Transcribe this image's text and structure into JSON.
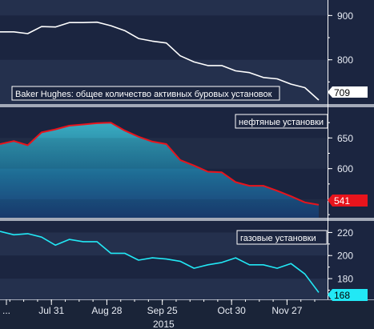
{
  "chart_data": [
    {
      "type": "line",
      "legend": "Baker Hughes: общее количество активных буровых установок",
      "x": [
        "Jul 03",
        "Jul 10",
        "Jul 17",
        "Jul 24",
        "Jul 31",
        "Aug 07",
        "Aug 14",
        "Aug 21",
        "Aug 28",
        "Sep 04",
        "Sep 11",
        "Sep 18",
        "Sep 25",
        "Oct 02",
        "Oct 09",
        "Oct 16",
        "Oct 23",
        "Oct 30",
        "Nov 06",
        "Nov 13",
        "Nov 20",
        "Nov 27",
        "Dec 04",
        "Dec 11"
      ],
      "values": [
        863,
        863,
        859,
        875,
        874,
        884,
        884,
        885,
        877,
        866,
        848,
        842,
        838,
        809,
        795,
        787,
        787,
        775,
        771,
        760,
        757,
        745,
        737,
        709
      ],
      "last_value_label": "709",
      "ylim": [
        700,
        935
      ],
      "yticks": [
        "900",
        "800"
      ],
      "color": "#ffffff"
    },
    {
      "type": "area",
      "legend": "нефтяные установки",
      "x": [
        "Jul 03",
        "Jul 10",
        "Jul 17",
        "Jul 24",
        "Jul 31",
        "Aug 07",
        "Aug 14",
        "Aug 21",
        "Aug 28",
        "Sep 04",
        "Sep 11",
        "Sep 18",
        "Sep 25",
        "Oct 02",
        "Oct 09",
        "Oct 16",
        "Oct 23",
        "Oct 30",
        "Nov 06",
        "Nov 13",
        "Nov 20",
        "Nov 27",
        "Dec 04",
        "Dec 11"
      ],
      "values": [
        640,
        645,
        638,
        659,
        664,
        670,
        672,
        674,
        675,
        662,
        652,
        644,
        640,
        614,
        605,
        595,
        594,
        578,
        572,
        572,
        564,
        555,
        545,
        541
      ],
      "last_value_label": "541",
      "ylim": [
        520,
        700
      ],
      "yticks": [
        "650",
        "600",
        "550"
      ],
      "color": "#e8141c"
    },
    {
      "type": "line",
      "legend": "газовые установки",
      "x": [
        "Jul 03",
        "Jul 10",
        "Jul 17",
        "Jul 24",
        "Jul 31",
        "Aug 07",
        "Aug 14",
        "Aug 21",
        "Aug 28",
        "Sep 04",
        "Sep 11",
        "Sep 18",
        "Sep 25",
        "Oct 02",
        "Oct 09",
        "Oct 16",
        "Oct 23",
        "Oct 30",
        "Nov 06",
        "Nov 13",
        "Nov 20",
        "Nov 27",
        "Dec 04",
        "Dec 11"
      ],
      "values": [
        221,
        218,
        219,
        216,
        209,
        214,
        212,
        212,
        202,
        202,
        196,
        198,
        197,
        195,
        189,
        192,
        194,
        198,
        192,
        192,
        189,
        193,
        184,
        168
      ],
      "last_value_label": "168",
      "ylim": [
        162,
        230
      ],
      "yticks": [
        "220",
        "200",
        "180"
      ],
      "color": "#22e8f5"
    }
  ],
  "x_axis": {
    "tick_labels": [
      "...",
      "Jul 31",
      "Aug 28",
      "Sep 25",
      "Oct 30",
      "Nov 27"
    ],
    "year_label": "2015"
  }
}
